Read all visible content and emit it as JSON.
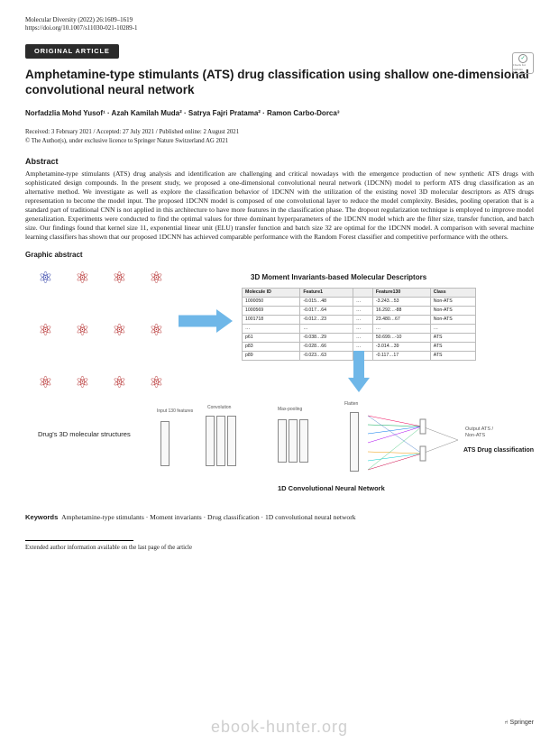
{
  "header": {
    "journal": "Molecular Diversity (2022) 26:1609–1619",
    "doi": "https://doi.org/10.1007/s11030-021-10289-1",
    "article_type": "ORIGINAL ARTICLE",
    "check_badge": "Check for updates"
  },
  "title": "Amphetamine-type stimulants (ATS) drug classification using shallow one-dimensional convolutional neural network",
  "authors_html": "Norfadzlia Mohd Yusof¹ · Azah Kamilah Muda² · Satrya Fajri Pratama² · Ramon Carbo-Dorca³",
  "dates": "Received: 3 February 2021 / Accepted: 27 July 2021 / Published online: 2 August 2021",
  "copyright": "© The Author(s), under exclusive licence to Springer Nature Switzerland AG 2021",
  "abstract_heading": "Abstract",
  "abstract": "Amphetamine-type stimulants (ATS) drug analysis and identification are challenging and critical nowadays with the emergence production of new synthetic ATS drugs with sophisticated design compounds. In the present study, we proposed a one-dimensional convolutional neural network (1DCNN) model to perform ATS drug classification as an alternative method. We investigate as well as explore the classification behavior of 1DCNN with the utilization of the existing novel 3D molecular descriptors as ATS drugs representation to become the model input. The proposed 1DCNN model is composed of one convolutional layer to reduce the model complexity. Besides, pooling operation that is a standard part of traditional CNN is not applied in this architecture to have more features in the classification phase. The dropout regularization technique is employed to improve model generalization. Experiments were conducted to find the optimal values for three dominant hyperparameters of the 1DCNN model which are the filter size, transfer function, and batch size. Our findings found that kernel size 11, exponential linear unit (ELU) transfer function and batch size 32 are optimal for the 1DCNN model. A comparison with several machine learning classifiers has shown that our proposed 1DCNN has achieved comparable performance with the Random Forest classifier and competitive performance with the others.",
  "graphic_label": "Graphic abstract",
  "figure": {
    "mol_label": "Drug's 3D molecular structures",
    "desc_title": "3D Moment Invariants-based Molecular Descriptors",
    "cnn_label": "1D Convolutional Neural Network",
    "class_label": "ATS Drug classification",
    "table": {
      "headers": [
        "Molecule ID",
        "Feature1",
        "",
        "Feature130",
        "Class"
      ],
      "rows": [
        [
          "1000050",
          "-0.015…48",
          "…",
          "-3.243…53",
          "Non-ATS"
        ],
        [
          "1000569",
          "-0.017…64",
          "…",
          "16.292…-88",
          "Non-ATS"
        ],
        [
          "1001718",
          "-0.012…23",
          "…",
          "23.480…67",
          "Non-ATS"
        ],
        [
          "…",
          "…",
          "…",
          "…",
          "…"
        ],
        [
          "p61",
          "-0.038…29",
          "…",
          "50.699…-10",
          "ATS"
        ],
        [
          "p83",
          "-0.028…66",
          "…",
          "-3.014…39",
          "ATS"
        ],
        [
          "p89",
          "-0.023…63",
          "…",
          "-0.117…17",
          "ATS"
        ]
      ]
    },
    "cnn_stages": [
      "Input 130 features",
      "Convolution",
      "Max-pooling",
      "Flatten",
      "Output ATS / Non-ATS"
    ],
    "colors": {
      "arrow": "#6fb7e8",
      "mol_red": "#b02020",
      "mol_blue": "#2030a0",
      "table_border": "#bbbbbb"
    }
  },
  "keywords_label": "Keywords",
  "keywords": "Amphetamine-type stimulants · Moment invariants · Drug classification · 1D convolutional neural network",
  "extended_author": "Extended author information available on the last page of the article",
  "publisher": "Springer",
  "watermark": "ebook-hunter.org"
}
